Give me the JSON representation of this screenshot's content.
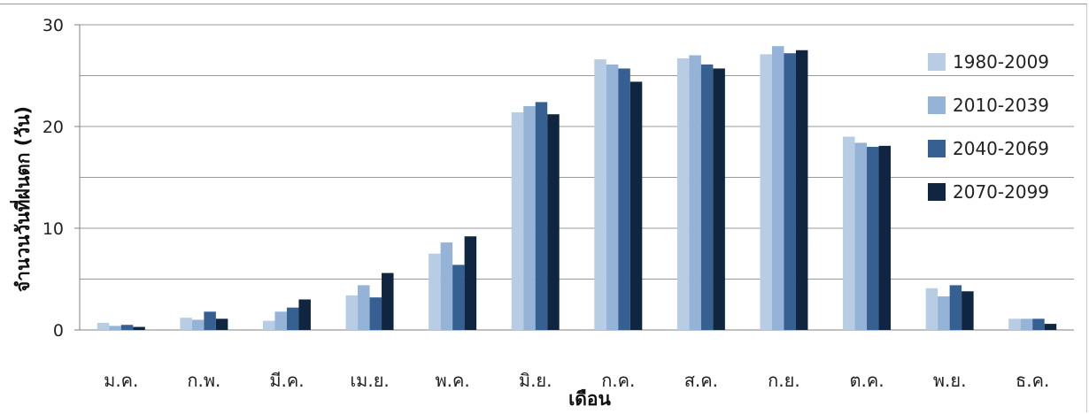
{
  "chart_data": {
    "type": "bar",
    "title": "",
    "xlabel": "เดือน",
    "ylabel": "จำนวนวันที่ฝนตก (วัน)",
    "ylim": [
      0,
      30
    ],
    "yticks": [
      "0",
      "10",
      "20",
      "30"
    ],
    "grid": true,
    "legend_position": "right",
    "categories": [
      "ม.ค.",
      "ก.พ.",
      "มี.ค.",
      "เม.ย.",
      "พ.ค.",
      "มิ.ย.",
      "ก.ค.",
      "ส.ค.",
      "ก.ย.",
      "ต.ค.",
      "พ.ย.",
      "ธ.ค."
    ],
    "series": [
      {
        "name": "1980-2009",
        "color": "#b8cce4",
        "values": [
          0.7,
          1.2,
          0.9,
          3.4,
          7.5,
          21.4,
          26.6,
          26.7,
          27.1,
          19.0,
          4.1,
          1.1
        ]
      },
      {
        "name": "2010-2039",
        "color": "#95b3d7",
        "values": [
          0.4,
          1.0,
          1.8,
          4.4,
          8.6,
          22.0,
          26.1,
          27.0,
          27.9,
          18.4,
          3.3,
          1.1
        ]
      },
      {
        "name": "2040-2069",
        "color": "#366092",
        "values": [
          0.5,
          1.8,
          2.2,
          3.2,
          6.4,
          22.4,
          25.7,
          26.1,
          27.2,
          18.0,
          4.4,
          1.1
        ]
      },
      {
        "name": "2070-2099",
        "color": "#10253f",
        "values": [
          0.3,
          1.1,
          3.0,
          5.6,
          9.2,
          21.2,
          24.4,
          25.7,
          27.5,
          18.1,
          3.8,
          0.6
        ]
      }
    ]
  }
}
